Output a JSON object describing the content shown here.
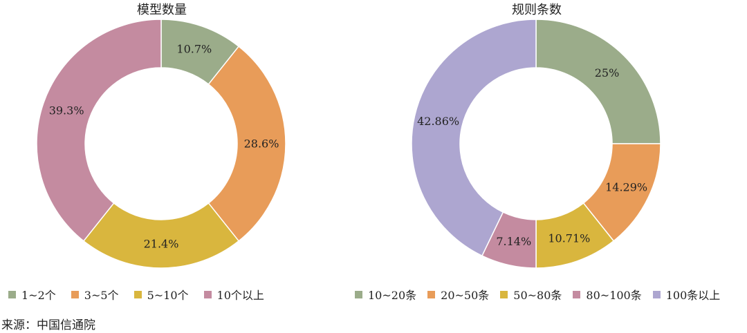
{
  "chart_data": [
    {
      "type": "pie",
      "title": "模型数量",
      "categories": [
        "1~2个",
        "3~5个",
        "5~10个",
        "10个以上"
      ],
      "values": [
        10.7,
        28.6,
        21.4,
        39.3
      ],
      "labels": [
        "10.7%",
        "28.6%",
        "21.4%",
        "39.3%"
      ],
      "colors": [
        "#9bac8a",
        "#e89c59",
        "#d9b63e",
        "#c48ba0"
      ],
      "style": "donut",
      "legend": "bottom"
    },
    {
      "type": "pie",
      "title": "规则条数",
      "categories": [
        "10~20条",
        "20~50条",
        "50~80条",
        "80~100条",
        "100条以上"
      ],
      "values": [
        25,
        14.29,
        10.71,
        7.14,
        42.86
      ],
      "labels": [
        "25%",
        "14.29%",
        "10.71%",
        "7.14%",
        "42.86%"
      ],
      "colors": [
        "#9bac8a",
        "#e89c59",
        "#d9b63e",
        "#c48ba0",
        "#ada6d0"
      ],
      "style": "donut",
      "legend": "bottom"
    }
  ],
  "source": "来源：中国信通院"
}
